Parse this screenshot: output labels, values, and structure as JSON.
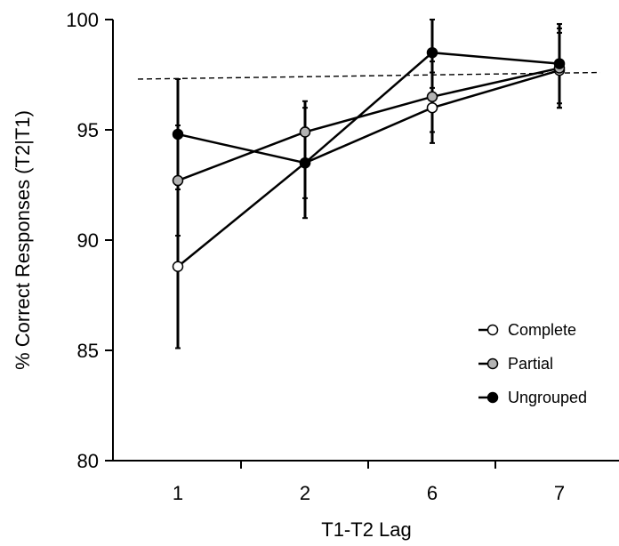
{
  "chart_data": {
    "type": "line",
    "xlabel": "T1-T2 Lag",
    "ylabel": "% Correct Responses (T2|T1)",
    "categories": [
      "1",
      "2",
      "6",
      "7"
    ],
    "ylim": [
      80,
      100
    ],
    "yticks": [
      80,
      85,
      90,
      95,
      100
    ],
    "reference_line": {
      "y_start": 97.3,
      "y_end": 97.6,
      "style": "dashed"
    },
    "legend_position": "bottom-right",
    "series": [
      {
        "name": "Complete",
        "marker_fill": "#ffffff",
        "values": [
          88.8,
          93.5,
          96.0,
          97.7
        ],
        "error": [
          3.7,
          2.5,
          1.6,
          1.7
        ]
      },
      {
        "name": "Partial",
        "marker_fill": "#b3b3b3",
        "values": [
          92.7,
          94.9,
          96.5,
          97.8
        ],
        "error": [
          2.5,
          1.4,
          1.6,
          1.8
        ]
      },
      {
        "name": "Ungrouped",
        "marker_fill": "#000000",
        "values": [
          94.8,
          93.5,
          98.5,
          98.0
        ],
        "error": [
          2.5,
          1.6,
          1.6,
          1.8
        ]
      }
    ]
  }
}
